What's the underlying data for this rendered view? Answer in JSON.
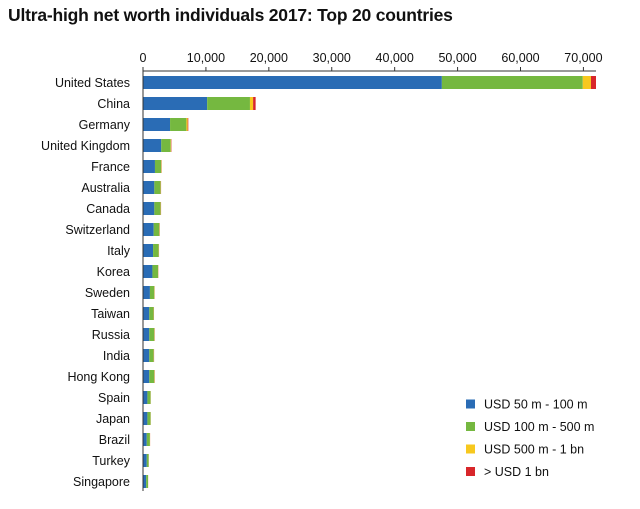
{
  "chart_data": {
    "type": "bar",
    "orientation": "horizontal",
    "stacked": true,
    "title": "Ultra-high net worth individuals 2017: Top 20 countries",
    "xlim": [
      0,
      72000
    ],
    "x_ticks": [
      0,
      10000,
      20000,
      30000,
      40000,
      50000,
      60000,
      70000
    ],
    "x_tick_labels": [
      "0",
      "10,000",
      "20,000",
      "30,000",
      "40,000",
      "50,000",
      "60,000",
      "70,000"
    ],
    "x_axis_position": "top",
    "grid": false,
    "legend_position": "bottom-right",
    "categories": [
      "United States",
      "China",
      "Germany",
      "United Kingdom",
      "France",
      "Australia",
      "Canada",
      "Switzerland",
      "Italy",
      "Korea",
      "Sweden",
      "Taiwan",
      "Russia",
      "India",
      "Hong Kong",
      "Spain",
      "Japan",
      "Brazil",
      "Turkey",
      "Singapore"
    ],
    "series": [
      {
        "name": "USD 50 m - 100 m",
        "color": "#2a6cb5",
        "values": [
          47500,
          10200,
          4300,
          2900,
          1900,
          1800,
          1800,
          1700,
          1600,
          1500,
          1100,
          1000,
          1000,
          1000,
          1000,
          700,
          700,
          600,
          600,
          500
        ]
      },
      {
        "name": "USD 100 m - 500 m",
        "color": "#75b840",
        "values": [
          22400,
          6800,
          2600,
          1500,
          1000,
          1000,
          1000,
          900,
          900,
          900,
          700,
          700,
          800,
          700,
          800,
          500,
          500,
          500,
          300,
          300
        ]
      },
      {
        "name": "USD 500 m - 1 bn",
        "color": "#f7c81e",
        "values": [
          1300,
          500,
          200,
          80,
          40,
          40,
          40,
          40,
          30,
          30,
          30,
          30,
          30,
          30,
          40,
          20,
          20,
          20,
          10,
          10
        ]
      },
      {
        "name": "> USD 1 bn",
        "color": "#d8262a",
        "values": [
          800,
          400,
          100,
          50,
          30,
          30,
          30,
          30,
          20,
          20,
          20,
          20,
          30,
          30,
          30,
          10,
          10,
          10,
          10,
          10
        ]
      }
    ]
  }
}
